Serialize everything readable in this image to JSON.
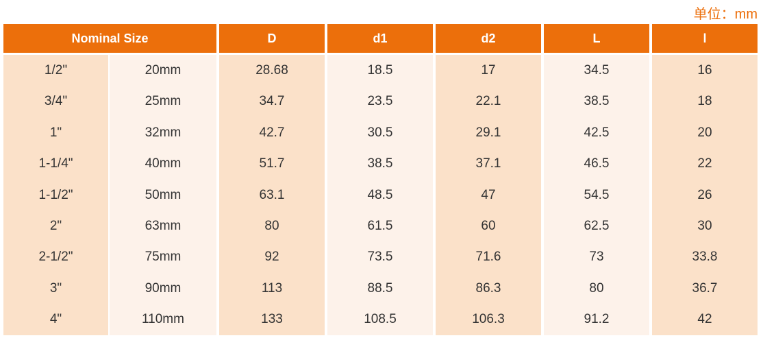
{
  "unit": "单位：mm",
  "table": {
    "headers": [
      "Nominal Size",
      "D",
      "d1",
      "d2",
      "L",
      "l"
    ],
    "rows": [
      [
        "1/2\"",
        "20mm",
        "28.68",
        "18.5",
        "17",
        "34.5",
        "16"
      ],
      [
        "3/4\"",
        "25mm",
        "34.7",
        "23.5",
        "22.1",
        "38.5",
        "18"
      ],
      [
        "1\"",
        "32mm",
        "42.7",
        "30.5",
        "29.1",
        "42.5",
        "20"
      ],
      [
        "1-1/4\"",
        "40mm",
        "51.7",
        "38.5",
        "37.1",
        "46.5",
        "22"
      ],
      [
        "1-1/2\"",
        "50mm",
        "63.1",
        "48.5",
        "47",
        "54.5",
        "26"
      ],
      [
        "2\"",
        "63mm",
        "80",
        "61.5",
        "60",
        "62.5",
        "30"
      ],
      [
        "2-1/2\"",
        "75mm",
        "92",
        "73.5",
        "71.6",
        "73",
        "33.8"
      ],
      [
        "3\"",
        "90mm",
        "113",
        "88.5",
        "86.3",
        "80",
        "36.7"
      ],
      [
        "4\"",
        "110mm",
        "133",
        "108.5",
        "106.3",
        "91.2",
        "42"
      ]
    ]
  }
}
